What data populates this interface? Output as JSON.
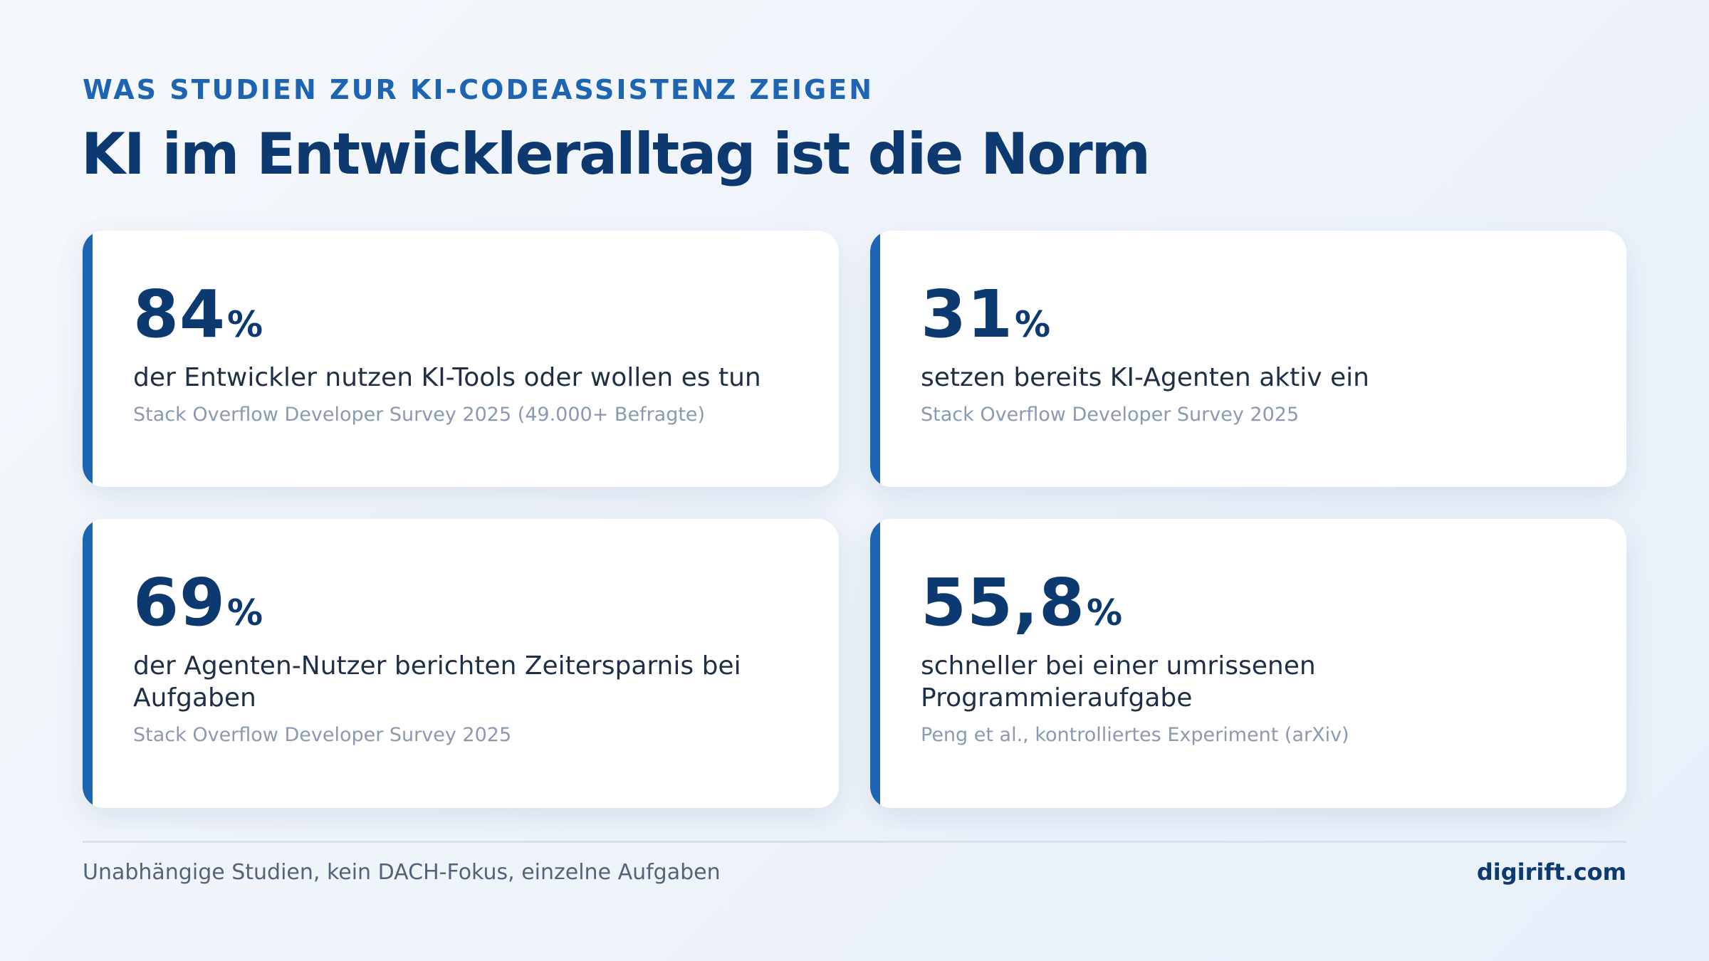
{
  "header": {
    "eyebrow": "WAS STUDIEN ZUR KI-CODEASSISTENZ ZEIGEN",
    "title": "KI im Entwickleralltag ist die Norm"
  },
  "stats": [
    {
      "value": "84",
      "unit": "%",
      "description": "der Entwickler nutzen KI-Tools oder wollen es tun",
      "source": "Stack Overflow Developer Survey 2025 (49.000+ Befragte)"
    },
    {
      "value": "31",
      "unit": "%",
      "description": "setzen bereits KI-Agenten aktiv ein",
      "source": "Stack Overflow Developer Survey 2025"
    },
    {
      "value": "69",
      "unit": "%",
      "description": "der Agenten-Nutzer berichten Zeitersparnis bei Aufgaben",
      "source": "Stack Overflow Developer Survey 2025"
    },
    {
      "value": "55,8",
      "unit": "%",
      "description": "schneller bei einer umrissenen Programmieraufgabe",
      "source": "Peng et al., kontrolliertes Experiment (arXiv)"
    }
  ],
  "footer": {
    "note": "Unabhängige Studien, kein DACH-Fokus, einzelne Aufgaben",
    "brand": "digirift.com"
  },
  "colors": {
    "accent": "#1d65b3",
    "heading": "#0c3a70",
    "body_text": "#1f2f45",
    "muted_text": "#8a9ab0",
    "card_background": "#ffffff"
  }
}
